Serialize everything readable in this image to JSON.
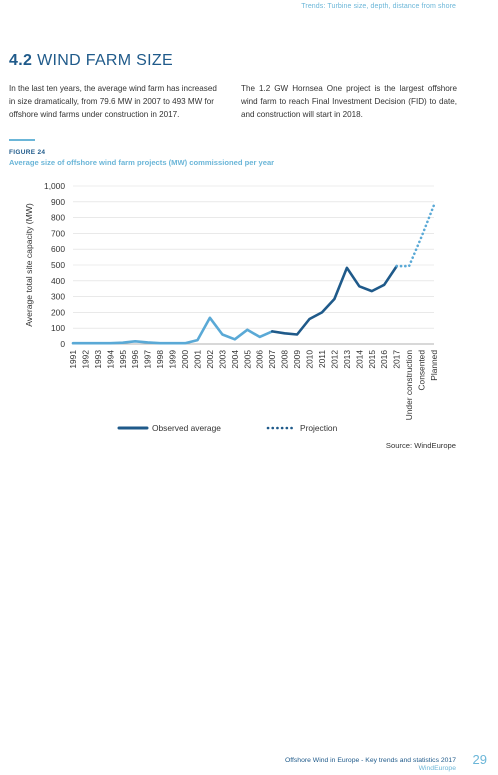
{
  "header": {
    "running_head": "Trends: Turbine size, depth, distance from shore"
  },
  "section": {
    "number": "4.2",
    "title": "WIND FARM SIZE"
  },
  "body": {
    "left": "In the last ten years, the average wind farm has increased in size dramatically, from 79.6 MW in 2007 to 493 MW for offshore wind farms under construction in 2017.",
    "right": "The 1.2 GW Hornsea One project is the largest offshore wind farm to reach Final Investment Decision (FID) to date, and construction will start in 2018."
  },
  "figure": {
    "label": "FIGURE 24",
    "title": "Average size of offshore wind farm projects (MW) commissioned per year",
    "source": "Source: WindEurope"
  },
  "chart_data": {
    "type": "line",
    "ylabel": "Average total site capacity (MW)",
    "xlabel": "",
    "ylim": [
      0,
      1000
    ],
    "y_ticks": [
      "0",
      "100",
      "200",
      "300",
      "400",
      "500",
      "600",
      "700",
      "800",
      "900",
      "1,000"
    ],
    "categories": [
      "1991",
      "1992",
      "1993",
      "1994",
      "1995",
      "1996",
      "1997",
      "1998",
      "1999",
      "2000",
      "2001",
      "2002",
      "2003",
      "2004",
      "2005",
      "2006",
      "2007",
      "2008",
      "2009",
      "2010",
      "2011",
      "2012",
      "2013",
      "2014",
      "2015",
      "2016",
      "2017",
      "Under construction",
      "Consented",
      "Planned"
    ],
    "grid": true,
    "legend_position": "bottom",
    "colors": {
      "early": "#5aa9d6",
      "recent": "#1f5a8a",
      "projection": "#5aa9d6"
    },
    "series": [
      {
        "name": "Observed average",
        "style": "solid",
        "values": [
          5,
          5,
          5,
          5,
          8,
          17,
          10,
          5,
          5,
          5,
          25,
          166,
          60,
          30,
          90,
          45,
          79.6,
          68,
          60,
          158,
          200,
          285,
          482,
          365,
          335,
          375,
          493,
          null,
          null,
          null
        ]
      },
      {
        "name": "Projection",
        "style": "dotted",
        "values": [
          null,
          null,
          null,
          null,
          null,
          null,
          null,
          null,
          null,
          null,
          null,
          null,
          null,
          null,
          null,
          null,
          null,
          null,
          null,
          null,
          null,
          null,
          null,
          null,
          null,
          null,
          493,
          493,
          680,
          880
        ]
      }
    ]
  },
  "footer": {
    "text": "Offshore Wind in Europe - Key trends and statistics 2017",
    "org": "WindEurope",
    "page_number": "29"
  }
}
